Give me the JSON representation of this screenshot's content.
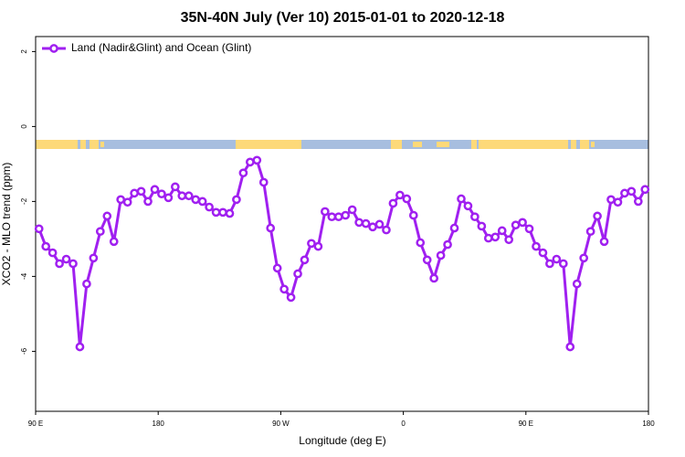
{
  "chart_data": {
    "type": "line",
    "title": "35N-40N July (Ver 10)   2015-01-01 to 2020-12-18",
    "x_label": "Longitude (deg E)",
    "y_label": "XCO2 - MLO trend (ppm)",
    "xlim": [
      90,
      540
    ],
    "xticks": [
      {
        "value": 90,
        "label": "90 E"
      },
      180,
      {
        "value": 270,
        "label": "90 W"
      },
      {
        "value": 360,
        "label": "0"
      },
      {
        "value": 450,
        "label": "90 E"
      },
      {
        "value": 540,
        "label": "180"
      }
    ],
    "ylim": [
      -7.6,
      2.4
    ],
    "yticks": [
      2,
      0,
      -2,
      -4,
      -6
    ],
    "legend": "top-left",
    "x": [
      92.5,
      97.5,
      102.5,
      107.5,
      112.5,
      117.5,
      122.5,
      127.5,
      132.5,
      137.5,
      142.5,
      147.5,
      152.5,
      157.5,
      162.5,
      167.5,
      172.5,
      177.5,
      182.5,
      187.5,
      192.5,
      197.5,
      202.5,
      207.5,
      212.5,
      217.5,
      222.5,
      227.5,
      232.5,
      237.5,
      242.5,
      247.5,
      252.5,
      257.5,
      262.5,
      267.5,
      272.5,
      277.5,
      282.5,
      287.5,
      292.5,
      297.5,
      302.5,
      307.5,
      312.5,
      317.5,
      322.5,
      327.5,
      332.5,
      337.5,
      342.5,
      347.5,
      352.5,
      357.5,
      362.5,
      367.5,
      372.5,
      377.5,
      382.5,
      387.5,
      392.5,
      397.5,
      402.5,
      407.5,
      412.5,
      417.5,
      422.5,
      427.5,
      432.5,
      437.5,
      442.5,
      447.5,
      452.5,
      457.5,
      462.5,
      467.5,
      472.5,
      477.5,
      482.5,
      487.5,
      492.5,
      497.5,
      502.5,
      507.5,
      512.5,
      517.5,
      522.5,
      527.5,
      532.5,
      537.5
    ],
    "series": [
      {
        "name": "Land (Nadir&Glint) and Ocean (Glint)",
        "color": "#a020f0",
        "values": [
          -2.73,
          -3.2,
          -3.37,
          -3.66,
          -3.54,
          -3.66,
          -5.88,
          -4.2,
          -3.51,
          -2.8,
          -2.39,
          -3.07,
          -1.95,
          -2.02,
          -1.78,
          -1.73,
          -2.0,
          -1.68,
          -1.8,
          -1.9,
          -1.61,
          -1.85,
          -1.85,
          -1.95,
          -2.0,
          -2.15,
          -2.29,
          -2.29,
          -2.32,
          -1.95,
          -1.24,
          -0.95,
          -0.9,
          -1.49,
          -2.71,
          -3.78,
          -4.34,
          -4.56,
          -3.93,
          -3.56,
          -3.12,
          -3.2,
          -2.27,
          -2.41,
          -2.41,
          -2.37,
          -2.22,
          -2.56,
          -2.59,
          -2.68,
          -2.61,
          -2.76,
          -2.05,
          -1.83,
          -1.93,
          -2.37,
          -3.1,
          -3.56,
          -4.05,
          -3.44,
          -3.15,
          -2.71,
          -1.93,
          -2.12,
          -2.41,
          -2.66,
          -2.98,
          -2.95,
          -2.78,
          -3.02,
          -2.63,
          -2.56,
          -2.73,
          -3.2,
          -3.37,
          -3.66,
          -3.54,
          -3.66,
          -5.88,
          -4.2,
          -3.51,
          -2.8,
          -2.39,
          -3.07,
          -1.95,
          -2.02,
          -1.78,
          -1.73,
          -2.0,
          -1.68
        ]
      }
    ]
  }
}
